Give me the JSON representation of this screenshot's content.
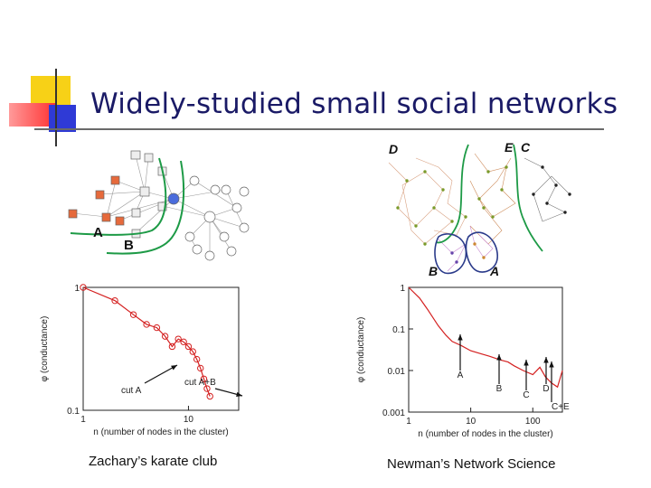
{
  "slide": {
    "title": "Widely-studied small social networks",
    "left_caption": "Zachary’s karate club",
    "right_caption": "Newman’s Network Science"
  },
  "karate_network": {
    "labels": [
      "A",
      "B"
    ]
  },
  "science_network": {
    "labels": [
      "D",
      "E",
      "C",
      "B",
      "A"
    ]
  },
  "chart_data": [
    {
      "type": "line",
      "title": "",
      "xlabel": "n (number of nodes in the cluster)",
      "ylabel": "φ (conductance)",
      "xscale": "log",
      "yscale": "log",
      "xlim": [
        1,
        30
      ],
      "ylim": [
        0.1,
        1
      ],
      "x_ticks": [
        "1",
        "10"
      ],
      "y_ticks": [
        "1",
        "0.1"
      ],
      "series": [
        {
          "name": "conductance",
          "x": [
            1,
            2,
            3,
            4,
            5,
            6,
            7,
            8,
            9,
            10,
            11,
            12,
            13,
            14,
            15,
            16
          ],
          "y": [
            1,
            0.78,
            0.6,
            0.5,
            0.47,
            0.4,
            0.33,
            0.38,
            0.36,
            0.33,
            0.3,
            0.26,
            0.22,
            0.18,
            0.15,
            0.13
          ]
        }
      ],
      "annotations": [
        "cut A",
        "cut A+B"
      ]
    },
    {
      "type": "line",
      "title": "",
      "xlabel": "n (number of nodes in the cluster)",
      "ylabel": "φ (conductance)",
      "xscale": "log",
      "yscale": "log",
      "xlim": [
        1,
        300
      ],
      "ylim": [
        0.001,
        1
      ],
      "x_ticks": [
        "1",
        "10",
        "100"
      ],
      "y_ticks": [
        "1",
        "0.1",
        "0.01",
        "0.001"
      ],
      "series": [
        {
          "name": "conductance",
          "x": [
            1,
            1.5,
            2,
            3,
            4,
            5,
            7,
            10,
            15,
            20,
            30,
            40,
            50,
            70,
            100,
            130,
            160,
            200,
            250,
            300
          ],
          "y": [
            1,
            0.55,
            0.3,
            0.12,
            0.07,
            0.05,
            0.04,
            0.03,
            0.025,
            0.022,
            0.018,
            0.016,
            0.013,
            0.01,
            0.008,
            0.012,
            0.007,
            0.005,
            0.004,
            0.01
          ]
        }
      ],
      "annotations": [
        "A",
        "B",
        "C",
        "D",
        "C+E"
      ]
    }
  ]
}
